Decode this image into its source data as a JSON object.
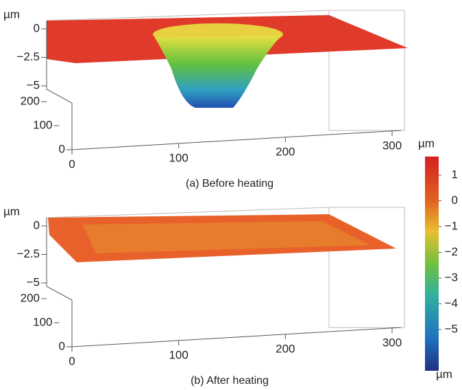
{
  "panels": [
    {
      "unit": "µm",
      "caption": "(a) Before heating",
      "zticks": [
        {
          "value": 0,
          "label": "0"
        },
        {
          "value": -2.5,
          "label": "−2.5"
        },
        {
          "value": -5,
          "label": "−5"
        }
      ],
      "yticks": [
        200,
        100,
        0
      ],
      "xticks": [
        0,
        100,
        200,
        300
      ]
    },
    {
      "unit": "µm",
      "caption": "(b) After heating",
      "zticks": [
        {
          "value": 0,
          "label": "0"
        },
        {
          "value": -2.5,
          "label": "−2.5"
        },
        {
          "value": -5,
          "label": "−5"
        }
      ],
      "yticks": [
        200,
        100,
        0
      ],
      "xticks": [
        0,
        100,
        200,
        300
      ]
    }
  ],
  "colorbar": {
    "unit_top": "µm",
    "unit_bottom": "µm",
    "ticks": [
      1,
      0,
      {
        "value": -1,
        "label": "−1"
      },
      {
        "value": -2,
        "label": "−2"
      },
      {
        "value": -3,
        "label": "−3"
      },
      {
        "value": -4,
        "label": "−4"
      },
      {
        "value": -5,
        "label": "−5"
      }
    ]
  }
}
